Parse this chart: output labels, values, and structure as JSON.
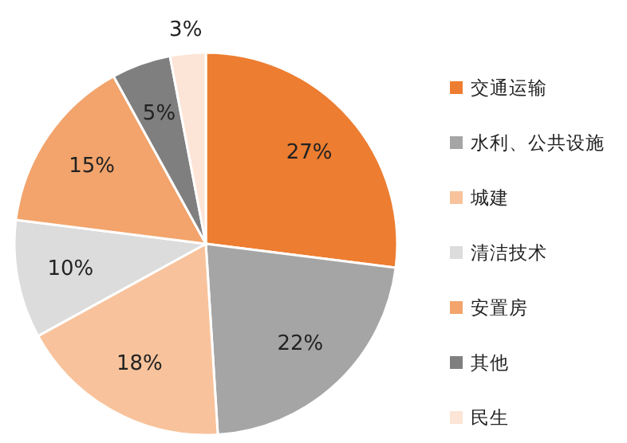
{
  "chart_data": {
    "type": "pie",
    "categories": [
      "交通运输",
      "水利、公共设施",
      "城建",
      "清洁技术",
      "安置房",
      "其他",
      "民生"
    ],
    "values": [
      27,
      22,
      18,
      10,
      15,
      5,
      3
    ],
    "colors": [
      "#ed7d31",
      "#a5a5a5",
      "#f8c39c",
      "#dcdcdc",
      "#f2a46c",
      "#7f7f7f",
      "#fce4d6"
    ],
    "value_labels": [
      "27%",
      "22%",
      "18%",
      "10%",
      "15%",
      "5%",
      "3%"
    ],
    "legend": "right"
  }
}
